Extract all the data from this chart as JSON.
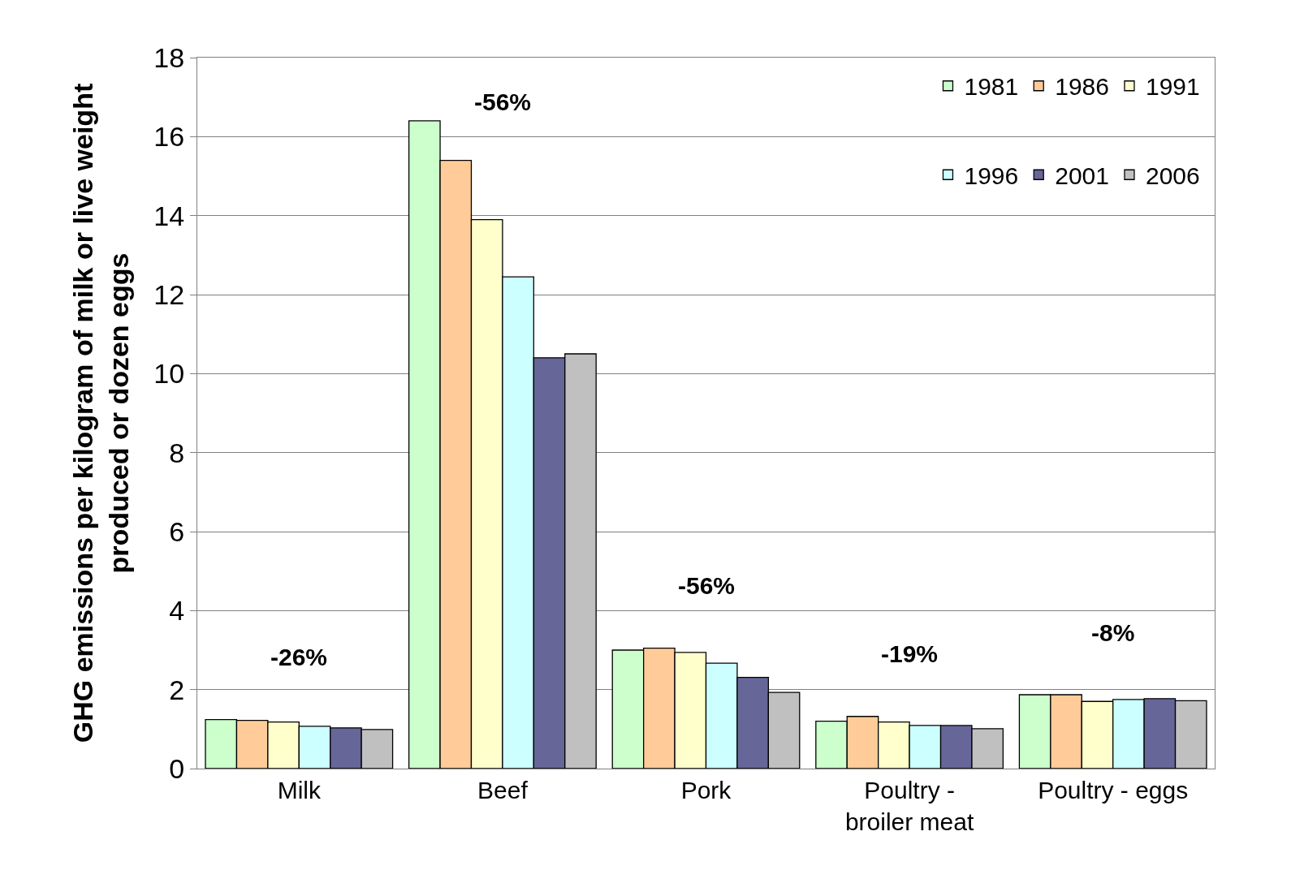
{
  "chart_data": {
    "type": "bar",
    "ylabel": "GHG emissions per kilogram of milk or live weight\nproduced or dozen eggs",
    "categories": [
      "Milk",
      "Beef",
      "Pork",
      "Poultry -\nbroiler meat",
      "Poultry - eggs"
    ],
    "series": [
      {
        "name": "1981",
        "color": "#ccffcc",
        "values": [
          1.24,
          16.4,
          3.0,
          1.2,
          1.87
        ]
      },
      {
        "name": "1986",
        "color": "#ffcc99",
        "values": [
          1.22,
          15.4,
          3.05,
          1.32,
          1.87
        ]
      },
      {
        "name": "1991",
        "color": "#ffffcc",
        "values": [
          1.18,
          13.9,
          2.94,
          1.18,
          1.7
        ]
      },
      {
        "name": "1996",
        "color": "#ccffff",
        "values": [
          1.07,
          12.45,
          2.67,
          1.09,
          1.75
        ]
      },
      {
        "name": "2001",
        "color": "#666699",
        "values": [
          1.03,
          10.4,
          2.31,
          1.09,
          1.77
        ]
      },
      {
        "name": "2006",
        "color": "#c0c0c0",
        "values": [
          0.99,
          10.5,
          1.93,
          1.01,
          1.72
        ]
      }
    ],
    "annotations": [
      "-26%",
      "-56%",
      "-56%",
      "-19%",
      "-8%"
    ],
    "ylim": [
      0,
      18
    ],
    "yticks": [
      0,
      2,
      4,
      6,
      8,
      10,
      12,
      14,
      16,
      18
    ],
    "grid": "y",
    "legend": "top right"
  }
}
